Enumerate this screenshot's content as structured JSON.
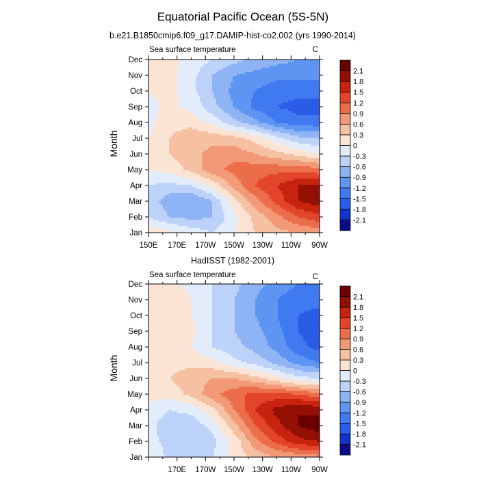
{
  "figure": {
    "title": "Equatorial Pacific Ocean (5S-5N)"
  },
  "colors": {
    "levels": [
      "-2.1",
      "-1.8",
      "-1.5",
      "-1.2",
      "-0.9",
      "-0.6",
      "-0.3",
      "0",
      "0.3",
      "0.6",
      "0.9",
      "1.2",
      "1.5",
      "1.8",
      "2.1"
    ],
    "fills": [
      "#0c0c8a",
      "#1233c6",
      "#2a5ce8",
      "#3f7af0",
      "#5e95f2",
      "#8fb4f5",
      "#bcd2f8",
      "#e3ecfb",
      "#fbe4d3",
      "#f6c1a3",
      "#f29a77",
      "#ec6d4a",
      "#e2452a",
      "#c8230f",
      "#941005",
      "#6b0000"
    ]
  },
  "chart_data": [
    {
      "type": "heatmap",
      "title": "b.e21.B1850cmip6.f09_g17.DAMIP-hist-co2.002 (yrs 1990-2014)",
      "left_label": "Sea surface temperature",
      "right_label": "C",
      "ylabel": "Month",
      "xlabel": "",
      "x_ticks": [
        "150E",
        "170E",
        "170W",
        "150W",
        "130W",
        "110W",
        "90W"
      ],
      "y_ticks": [
        "Jan",
        "Feb",
        "Mar",
        "Apr",
        "May",
        "Jun",
        "Jul",
        "Aug",
        "Sep",
        "Oct",
        "Nov",
        "Dec"
      ],
      "x_range_deg_east": [
        150,
        270
      ],
      "colorbar_levels": [
        "-2.1",
        "-1.8",
        "-1.5",
        "-1.2",
        "-0.9",
        "-0.6",
        "-0.3",
        "0",
        "0.3",
        "0.6",
        "0.9",
        "1.2",
        "1.5",
        "1.8",
        "2.1"
      ],
      "lon": [
        150,
        165,
        180,
        195,
        210,
        225,
        240,
        255,
        270
      ],
      "values": [
        [
          0.2,
          0.1,
          -0.1,
          -0.3,
          0.0,
          0.3,
          0.5,
          0.6,
          0.7
        ],
        [
          -0.3,
          -0.6,
          -0.7,
          -0.6,
          -0.1,
          0.4,
          0.8,
          1.2,
          1.4
        ],
        [
          -0.4,
          -0.8,
          -0.9,
          -0.6,
          0.2,
          0.8,
          1.3,
          1.8,
          2.0
        ],
        [
          -0.3,
          -0.4,
          -0.3,
          0.1,
          0.7,
          1.2,
          1.5,
          1.8,
          1.8
        ],
        [
          0.0,
          0.1,
          0.4,
          0.8,
          1.0,
          1.1,
          1.1,
          1.1,
          1.0
        ],
        [
          0.0,
          0.3,
          0.5,
          0.7,
          0.8,
          0.6,
          0.4,
          0.2,
          0.0
        ],
        [
          0.0,
          0.3,
          0.5,
          0.5,
          0.4,
          0.2,
          -0.2,
          -0.5,
          -0.6
        ],
        [
          -0.1,
          0.2,
          0.2,
          -0.1,
          -0.5,
          -0.8,
          -1.2,
          -1.4,
          -1.4
        ],
        [
          -0.1,
          0.1,
          -0.1,
          -0.5,
          -0.9,
          -1.3,
          -1.5,
          -1.6,
          -1.6
        ],
        [
          0.0,
          0.1,
          -0.2,
          -0.6,
          -1.0,
          -1.2,
          -1.4,
          -1.4,
          -1.4
        ],
        [
          0.1,
          0.1,
          -0.2,
          -0.6,
          -0.9,
          -1.0,
          -1.1,
          -1.1,
          -1.1
        ],
        [
          0.2,
          0.1,
          -0.1,
          -0.3,
          -0.5,
          -0.7,
          -0.8,
          -0.9,
          -0.9
        ]
      ]
    },
    {
      "type": "heatmap",
      "title": "HadISST (1982-2001)",
      "left_label": "Sea surface temperature",
      "right_label": "C",
      "ylabel": "Month",
      "xlabel": "",
      "x_ticks": [
        "",
        "170E",
        "170W",
        "150W",
        "130W",
        "110W",
        "90W"
      ],
      "y_ticks": [
        "Jan",
        "Feb",
        "Mar",
        "Apr",
        "May",
        "Jun",
        "Jul",
        "Aug",
        "Sep",
        "Oct",
        "Nov",
        "Dec"
      ],
      "x_range_deg_east": [
        150,
        270
      ],
      "colorbar_levels": [
        "-2.1",
        "-1.8",
        "-1.5",
        "-1.2",
        "-0.9",
        "-0.6",
        "-0.3",
        "0",
        "0.3",
        "0.6",
        "0.9",
        "1.2",
        "1.5",
        "1.8",
        "2.1"
      ],
      "lon": [
        150,
        165,
        180,
        195,
        210,
        225,
        240,
        255,
        270
      ],
      "values": [
        [
          0.0,
          -0.4,
          -0.5,
          -0.3,
          0.1,
          0.4,
          0.6,
          0.7,
          0.8
        ],
        [
          -0.2,
          -0.4,
          -0.5,
          -0.4,
          0.1,
          0.8,
          1.3,
          1.7,
          1.8
        ],
        [
          -0.2,
          -0.5,
          -0.5,
          -0.2,
          0.5,
          1.2,
          1.7,
          2.1,
          2.3
        ],
        [
          -0.1,
          -0.3,
          -0.2,
          0.2,
          0.9,
          1.5,
          1.9,
          2.1,
          2.0
        ],
        [
          0.1,
          0.1,
          0.4,
          0.8,
          1.1,
          1.3,
          1.3,
          1.2,
          1.0
        ],
        [
          0.2,
          0.3,
          0.5,
          0.6,
          0.6,
          0.4,
          0.1,
          -0.2,
          -0.3
        ],
        [
          0.2,
          0.2,
          0.2,
          0.1,
          -0.2,
          -0.4,
          -0.7,
          -1.0,
          -1.2
        ],
        [
          0.2,
          0.2,
          0.0,
          -0.3,
          -0.5,
          -0.7,
          -1.0,
          -1.4,
          -1.6
        ],
        [
          0.2,
          0.3,
          0.1,
          -0.3,
          -0.6,
          -0.8,
          -1.1,
          -1.5,
          -1.7
        ],
        [
          0.2,
          0.2,
          0.0,
          -0.3,
          -0.6,
          -0.9,
          -1.2,
          -1.5,
          -1.6
        ],
        [
          0.2,
          0.2,
          0.0,
          -0.3,
          -0.6,
          -0.9,
          -1.2,
          -1.4,
          -1.4
        ],
        [
          0.2,
          0.1,
          -0.1,
          -0.3,
          -0.5,
          -0.8,
          -1.0,
          -1.2,
          -1.2
        ]
      ]
    }
  ]
}
